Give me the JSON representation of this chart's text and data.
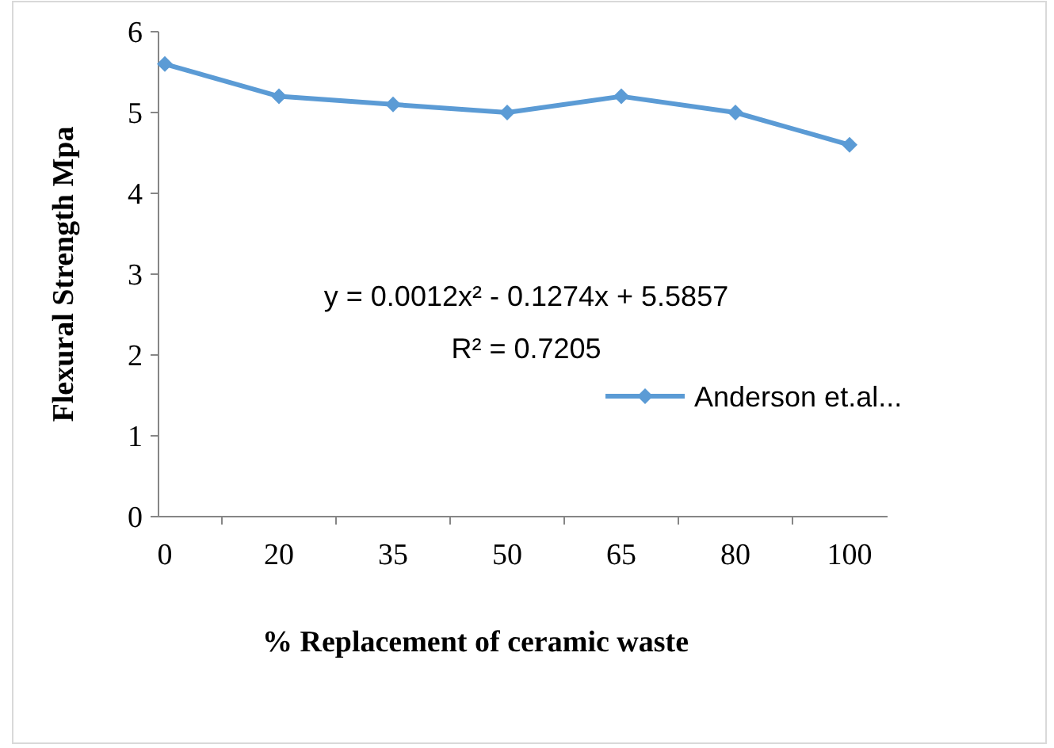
{
  "chart_data": {
    "type": "line",
    "xlabel": "% Replacement of ceramic waste",
    "ylabel": "Flexural Strength Mpa",
    "categories": [
      "0",
      "20",
      "35",
      "50",
      "65",
      "80",
      "100"
    ],
    "series": [
      {
        "name": "Anderson et.al...",
        "color": "#5b9bd5",
        "values": [
          5.6,
          5.2,
          5.1,
          5.0,
          5.2,
          5.0,
          4.6
        ]
      }
    ],
    "ylim": [
      0,
      6
    ],
    "yticks": [
      0,
      1,
      2,
      3,
      4,
      5,
      6
    ],
    "grid": false,
    "legend": "right",
    "marker": "diamond",
    "line_style": "solid",
    "annotations": [
      "y = 0.0012x² - 0.1274x + 5.5857",
      "R² = 0.7205"
    ]
  }
}
